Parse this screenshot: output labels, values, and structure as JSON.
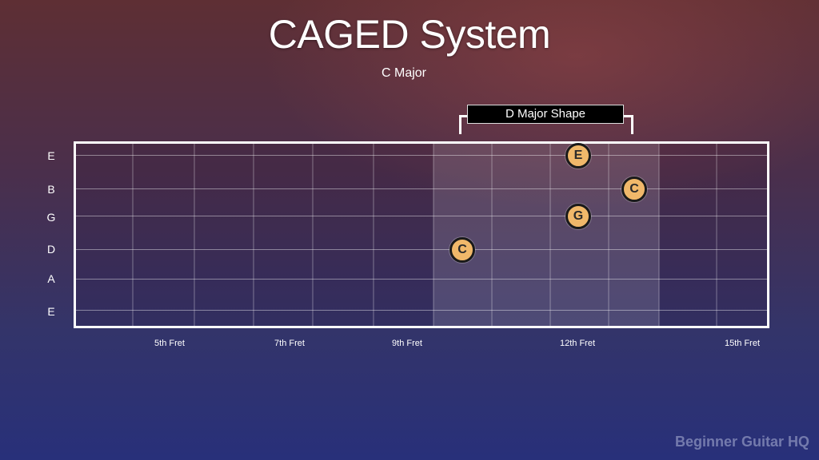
{
  "title": "CAGED System",
  "subtitle": "C Major",
  "shape_label": "D Major Shape",
  "string_labels": [
    "E",
    "B",
    "G",
    "D",
    "A",
    "E"
  ],
  "fret_labels": [
    "5th Fret",
    "7th Fret",
    "9th Fret",
    "12th Fret",
    "15th Fret"
  ],
  "notes": [
    {
      "name": "E",
      "string": "high E",
      "fret": 12
    },
    {
      "name": "C",
      "string": "B",
      "fret": 13
    },
    {
      "name": "G",
      "string": "G",
      "fret": 12
    },
    {
      "name": "C",
      "string": "D",
      "fret": 10
    }
  ],
  "shape_frets": [
    10,
    13
  ],
  "colors": {
    "note_fill": "#f0b86a",
    "note_border": "#1a1a1a",
    "label_bg": "#000000"
  },
  "watermark": "Beginner Guitar HQ"
}
